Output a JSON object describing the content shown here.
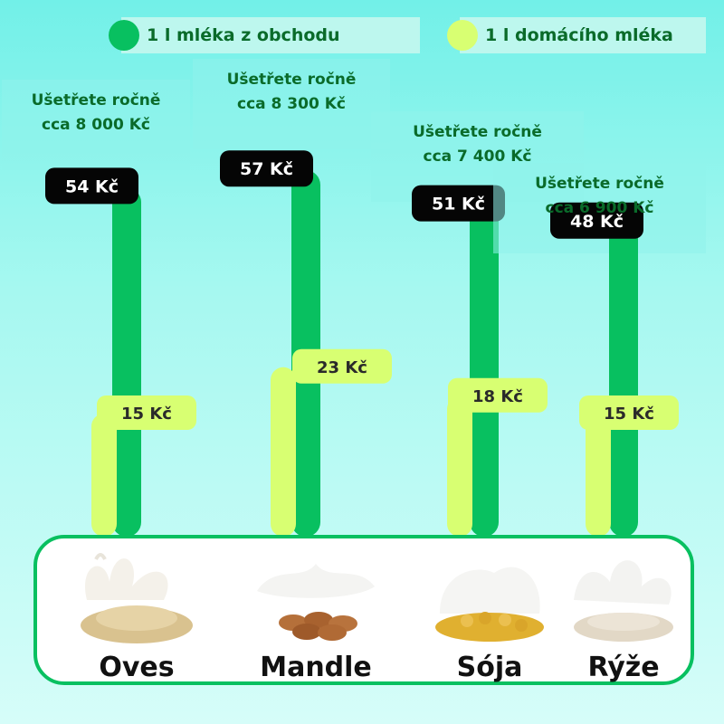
{
  "legend": {
    "store_label": "1 l mléka z obchodu",
    "home_label": "1 l domácího mléka",
    "store_color": "#08c060",
    "home_color": "#d8ff72"
  },
  "chart_data": {
    "type": "bar",
    "categories": [
      "Oves",
      "Mandle",
      "Sója",
      "Rýže"
    ],
    "series": [
      {
        "name": "1 l mléka z obchodu",
        "values": [
          54,
          57,
          51,
          48
        ]
      },
      {
        "name": "1 l domácího mléka",
        "values": [
          15,
          23,
          18,
          15
        ]
      }
    ],
    "value_labels": {
      "store": [
        "54 Kč",
        "57 Kč",
        "51 Kč",
        "48 Kč"
      ],
      "home": [
        "15 Kč",
        "23 Kč",
        "18 Kč",
        "15 Kč"
      ]
    },
    "annotations": [
      {
        "line1": "Ušetřete ročně",
        "line2": "cca 8 000 Kč"
      },
      {
        "line1": "Ušetřete ročně",
        "line2": "cca 8 300 Kč"
      },
      {
        "line1": "Ušetřete ročně",
        "line2": "cca 7 400 Kč"
      },
      {
        "line1": "Ušetřete ročně",
        "line2": "cca 6 900 Kč"
      }
    ],
    "unit": "Kč",
    "ylim": [
      0,
      60
    ],
    "grid": false,
    "legend_position": "top"
  },
  "products": [
    {
      "label": "Oves",
      "icon": "oats-milk-splash-icon"
    },
    {
      "label": "Mandle",
      "icon": "almond-milk-splash-icon"
    },
    {
      "label": "Sója",
      "icon": "soy-milk-splash-icon"
    },
    {
      "label": "Rýže",
      "icon": "rice-milk-splash-icon"
    }
  ]
}
